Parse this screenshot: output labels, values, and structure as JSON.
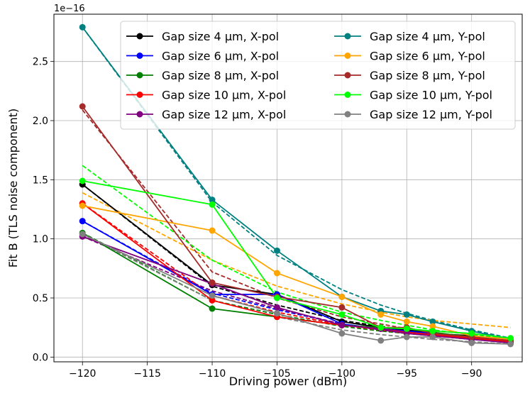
{
  "chart_data": {
    "type": "line",
    "title": "",
    "xlabel": "Driving power (dBm)",
    "ylabel": "Fit B (TLS noise component)",
    "y_offset_label": "1e−16",
    "xlim": [
      -122.2,
      -86.1
    ],
    "ylim": [
      -0.04,
      2.9
    ],
    "x_ticks": [
      -120,
      -115,
      -110,
      -105,
      -100,
      -95,
      -90
    ],
    "x_tick_labels": [
      "−120",
      "−115",
      "−110",
      "−105",
      "−100",
      "−95",
      "−90"
    ],
    "y_ticks": [
      0.0,
      0.5,
      1.0,
      1.5,
      2.0,
      2.5
    ],
    "y_tick_labels": [
      "0.0",
      "0.5",
      "1.0",
      "1.5",
      "2.0",
      "2.5"
    ],
    "grid": true,
    "legend_position": "top-right",
    "legend_columns": 2,
    "series": [
      {
        "name": "Gap size 4 μm, X-pol",
        "color": "#000000",
        "x": [
          -120,
          -110,
          -105,
          -100,
          -97,
          -95,
          -93,
          -90,
          -87
        ],
        "values": [
          1.46,
          0.61,
          0.53,
          0.3,
          0.25,
          0.23,
          0.2,
          0.18,
          0.15
        ],
        "fit": [
          1.46,
          0.6,
          0.44,
          0.31,
          0.26,
          0.23,
          0.2,
          0.17,
          0.15
        ]
      },
      {
        "name": "Gap size 6 μm, X-pol",
        "color": "#0000ff",
        "x": [
          -120,
          -110,
          -105,
          -100,
          -97,
          -95,
          -93,
          -90,
          -87
        ],
        "values": [
          1.15,
          0.53,
          0.53,
          0.28,
          0.24,
          0.22,
          0.2,
          0.17,
          0.14
        ],
        "fit": [
          1.15,
          0.54,
          0.4,
          0.28,
          0.23,
          0.21,
          0.19,
          0.16,
          0.14
        ]
      },
      {
        "name": "Gap size 8 μm, X-pol",
        "color": "#008000",
        "x": [
          -120,
          -110,
          -105,
          -100,
          -97,
          -95,
          -93,
          -90,
          -87
        ],
        "values": [
          1.05,
          0.41,
          0.34,
          0.27,
          0.25,
          0.24,
          0.21,
          0.17,
          0.13
        ],
        "fit": [
          1.05,
          0.48,
          0.36,
          0.26,
          0.22,
          0.2,
          0.18,
          0.16,
          0.14
        ]
      },
      {
        "name": "Gap size 10 μm, X-pol",
        "color": "#ff0000",
        "x": [
          -120,
          -110,
          -105,
          -100,
          -97,
          -95,
          -93,
          -90,
          -87
        ],
        "values": [
          1.3,
          0.48,
          0.34,
          0.27,
          0.24,
          0.21,
          0.19,
          0.16,
          0.13
        ],
        "fit": [
          1.3,
          0.52,
          0.38,
          0.27,
          0.23,
          0.2,
          0.18,
          0.15,
          0.13
        ]
      },
      {
        "name": "Gap size 12 μm, X-pol",
        "color": "#800080",
        "x": [
          -120,
          -110,
          -105,
          -100,
          -97,
          -95,
          -93,
          -90,
          -87
        ],
        "values": [
          1.02,
          0.62,
          0.42,
          0.27,
          0.24,
          0.2,
          0.18,
          0.15,
          0.12
        ],
        "fit": [
          1.02,
          0.56,
          0.41,
          0.28,
          0.23,
          0.2,
          0.18,
          0.15,
          0.13
        ]
      },
      {
        "name": "Gap size 4 μm, Y-pol",
        "color": "#008080",
        "x": [
          -120,
          -110,
          -105,
          -100,
          -97,
          -95,
          -93,
          -90,
          -87
        ],
        "values": [
          2.79,
          1.33,
          0.9,
          0.51,
          0.39,
          0.36,
          0.3,
          0.22,
          0.15
        ],
        "fit": [
          2.79,
          1.31,
          0.86,
          0.57,
          0.44,
          0.37,
          0.31,
          0.23,
          0.16
        ]
      },
      {
        "name": "Gap size 6 μm, Y-pol",
        "color": "#ffa500",
        "x": [
          -120,
          -110,
          -105,
          -100,
          -97,
          -95,
          -93,
          -90,
          -87
        ],
        "values": [
          1.28,
          1.07,
          0.71,
          0.51,
          0.36,
          0.3,
          0.26,
          0.18,
          0.15
        ],
        "fit": [
          1.39,
          0.82,
          0.6,
          0.45,
          0.38,
          0.34,
          0.31,
          0.28,
          0.25
        ]
      },
      {
        "name": "Gap size 8 μm, Y-pol",
        "color": "#a52a2a",
        "x": [
          -120,
          -110,
          -105,
          -100,
          -97,
          -95,
          -93,
          -90,
          -87
        ],
        "values": [
          2.12,
          0.63,
          0.51,
          0.42,
          0.25,
          0.25,
          0.2,
          0.17,
          0.14
        ],
        "fit": [
          2.09,
          0.72,
          0.5,
          0.34,
          0.28,
          0.24,
          0.2,
          0.16,
          0.12
        ]
      },
      {
        "name": "Gap size 10 μm, Y-pol",
        "color": "#00ff00",
        "x": [
          -120,
          -110,
          -105,
          -100,
          -97,
          -95,
          -93,
          -90,
          -87
        ],
        "values": [
          1.49,
          1.29,
          0.5,
          0.36,
          0.25,
          0.24,
          0.22,
          0.2,
          0.16
        ],
        "fit": [
          1.62,
          0.82,
          0.55,
          0.38,
          0.31,
          0.27,
          0.23,
          0.19,
          0.16
        ]
      },
      {
        "name": "Gap size 12 μm, Y-pol",
        "color": "#808080",
        "x": [
          -120,
          -110,
          -105,
          -100,
          -97,
          -95,
          -93,
          -90,
          -87
        ],
        "values": [
          1.04,
          0.52,
          0.37,
          0.2,
          0.14,
          0.17,
          0.17,
          0.12,
          0.11
        ],
        "fit": [
          1.04,
          0.48,
          0.34,
          0.23,
          0.19,
          0.17,
          0.15,
          0.13,
          0.11
        ]
      }
    ]
  }
}
